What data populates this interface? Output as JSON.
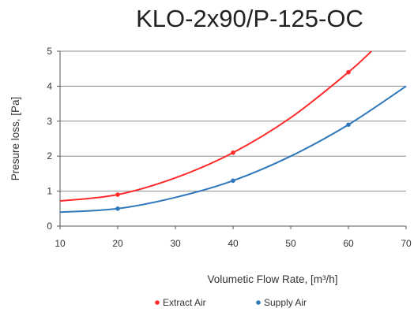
{
  "chart_data": {
    "type": "line",
    "title": "KLO-2x90/P-125-OC",
    "xlabel": "Volumetic Flow Rate, [m³/h]",
    "ylabel": "Presure loss, [Pa]",
    "xlim": [
      10,
      70
    ],
    "ylim": [
      0,
      5
    ],
    "xticks": [
      10,
      20,
      30,
      40,
      50,
      60,
      70
    ],
    "yticks": [
      0,
      1,
      2,
      3,
      4,
      5
    ],
    "grid": "horizontal",
    "legend_position": "bottom",
    "series": [
      {
        "name": "Extract Air",
        "color": "#ff2a2a",
        "points": [
          [
            20,
            0.9
          ],
          [
            40,
            2.1
          ],
          [
            60,
            4.4
          ]
        ],
        "curve": [
          [
            10,
            0.72
          ],
          [
            20,
            0.9
          ],
          [
            30,
            1.38
          ],
          [
            40,
            2.1
          ],
          [
            50,
            3.1
          ],
          [
            60,
            4.4
          ],
          [
            64,
            5.0
          ]
        ]
      },
      {
        "name": "Supply Air",
        "color": "#2e78bb",
        "points": [
          [
            20,
            0.5
          ],
          [
            40,
            1.3
          ],
          [
            60,
            2.9
          ]
        ],
        "curve": [
          [
            10,
            0.4
          ],
          [
            20,
            0.5
          ],
          [
            30,
            0.82
          ],
          [
            40,
            1.3
          ],
          [
            50,
            2.0
          ],
          [
            60,
            2.9
          ],
          [
            70,
            4.0
          ]
        ]
      }
    ]
  }
}
